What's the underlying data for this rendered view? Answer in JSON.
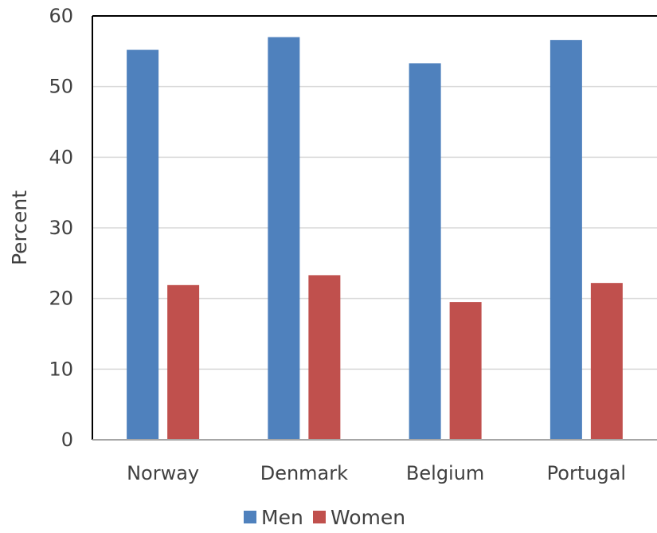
{
  "chart_data": {
    "type": "bar",
    "title": "",
    "xlabel": "",
    "ylabel": "Percent",
    "categories": [
      "Norway",
      "Denmark",
      "Belgium",
      "Portugal"
    ],
    "series": [
      {
        "name": "Men",
        "values": [
          55.2,
          57.0,
          53.3,
          56.6
        ],
        "color": "#4F81BD"
      },
      {
        "name": "Women",
        "values": [
          21.9,
          23.3,
          19.5,
          22.2
        ],
        "color": "#C0504D"
      }
    ],
    "ylim": [
      0,
      60
    ],
    "yticks": [
      0,
      10,
      20,
      30,
      40,
      50,
      60
    ],
    "grid": true,
    "legend_position": "bottom"
  }
}
